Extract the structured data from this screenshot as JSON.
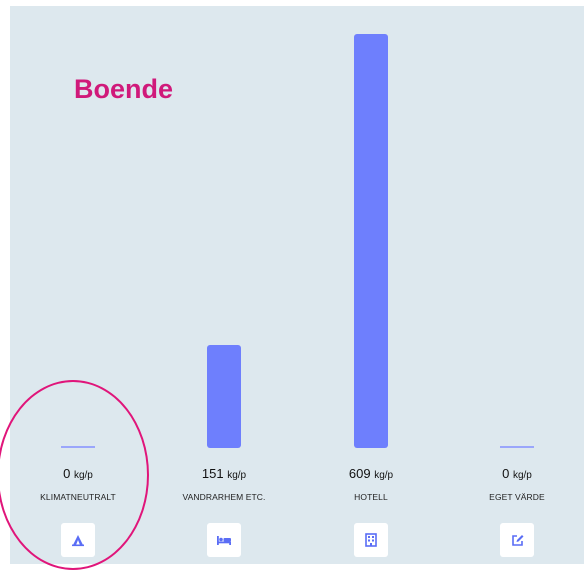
{
  "title": "Boende",
  "colors": {
    "accent": "#d0197a",
    "bar": "#6e7ffd",
    "panel": "#dde8ee",
    "highlight": "#e0157a"
  },
  "options": [
    {
      "value": "0",
      "unit": "kg/p",
      "label": "KLIMATNEUTRALT",
      "icon": "campfire-icon"
    },
    {
      "value": "151",
      "unit": "kg/p",
      "label": "VANDRARHEM ETC.",
      "icon": "bed-icon"
    },
    {
      "value": "609",
      "unit": "kg/p",
      "label": "HOTELL",
      "icon": "hotel-building-icon"
    },
    {
      "value": "0",
      "unit": "kg/p",
      "label": "EGET VÄRDE",
      "icon": "edit-icon"
    }
  ],
  "chart_data": {
    "type": "bar",
    "categories": [
      "KLIMATNEUTRALT",
      "VANDRARHEM ETC.",
      "HOTELL",
      "EGET VÄRDE"
    ],
    "values": [
      0,
      151,
      609,
      0
    ],
    "unit": "kg/p",
    "title": "Boende"
  }
}
